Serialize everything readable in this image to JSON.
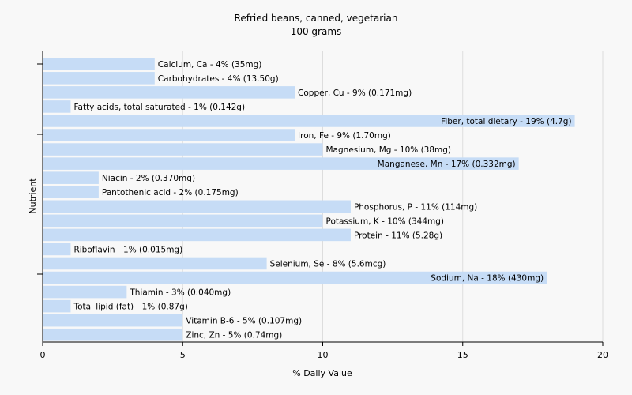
{
  "chart_data": {
    "type": "bar",
    "orientation": "horizontal",
    "title": "Refried beans, canned, vegetarian",
    "subtitle": "100 grams",
    "xlabel": "% Daily Value",
    "ylabel": "Nutrient",
    "xlim": [
      0,
      20
    ],
    "xticks": [
      "0",
      "5",
      "10",
      "15",
      "20"
    ],
    "grid": true,
    "bar_color": "#c6dcf6",
    "categories": [
      "Calcium, Ca",
      "Carbohydrates",
      "Copper, Cu",
      "Fatty acids, total saturated",
      "Fiber, total dietary",
      "Iron, Fe",
      "Magnesium, Mg",
      "Manganese, Mn",
      "Niacin",
      "Pantothenic acid",
      "Phosphorus, P",
      "Potassium, K",
      "Protein",
      "Riboflavin",
      "Selenium, Se",
      "Sodium, Na",
      "Thiamin",
      "Total lipid (fat)",
      "Vitamin B-6",
      "Zinc, Zn"
    ],
    "values": [
      4,
      4,
      9,
      1,
      19,
      9,
      10,
      17,
      2,
      2,
      11,
      10,
      11,
      1,
      8,
      18,
      3,
      1,
      5,
      5
    ],
    "labels": [
      "Calcium, Ca - 4% (35mg)",
      "Carbohydrates - 4% (13.50g)",
      "Copper, Cu - 9% (0.171mg)",
      "Fatty acids, total saturated - 1% (0.142g)",
      "Fiber, total dietary - 19% (4.7g)",
      "Iron, Fe - 9% (1.70mg)",
      "Magnesium, Mg - 10% (38mg)",
      "Manganese, Mn - 17% (0.332mg)",
      "Niacin - 2% (0.370mg)",
      "Pantothenic acid - 2% (0.175mg)",
      "Phosphorus, P - 11% (114mg)",
      "Potassium, K - 10% (344mg)",
      "Protein - 11% (5.28g)",
      "Riboflavin - 1% (0.015mg)",
      "Selenium, Se - 8% (5.6mcg)",
      "Sodium, Na - 18% (430mg)",
      "Thiamin - 3% (0.040mg)",
      "Total lipid (fat) - 1% (0.87g)",
      "Vitamin B-6 - 5% (0.107mg)",
      "Zinc, Zn - 5% (0.74mg)"
    ]
  }
}
